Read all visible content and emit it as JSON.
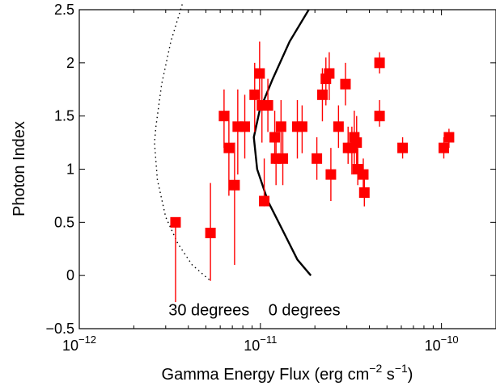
{
  "chart_data": {
    "type": "scatter",
    "xlabel": "Gamma Energy Flux (erg cm",
    "xlabel_sup1": "−2",
    "xlabel_mid": " s",
    "xlabel_sup2": "−1",
    "xlabel_end": ")",
    "ylabel": "Photon Index",
    "x_scale": "log",
    "xlim": [
      1e-12,
      2e-10
    ],
    "ylim": [
      -0.5,
      2.5
    ],
    "grid": false,
    "marker_color": "#ff0000",
    "x_ticks": [
      {
        "value": 1e-12,
        "base": "10",
        "exp": "−12"
      },
      {
        "value": 1e-11,
        "base": "10",
        "exp": "−11"
      },
      {
        "value": 1e-10,
        "base": "10",
        "exp": "−10"
      }
    ],
    "y_ticks": [
      {
        "value": -0.5,
        "label": "−0.5"
      },
      {
        "value": 0,
        "label": "0"
      },
      {
        "value": 0.5,
        "label": "0.5"
      },
      {
        "value": 1,
        "label": "1"
      },
      {
        "value": 1.5,
        "label": "1.5"
      },
      {
        "value": 2,
        "label": "2"
      },
      {
        "value": 2.5,
        "label": "2.5"
      }
    ],
    "annotations": [
      {
        "text": "30 degrees",
        "x": 5.2e-12,
        "y": -0.32
      },
      {
        "text": "0 degrees",
        "x": 1.75e-11,
        "y": -0.32
      }
    ],
    "curves": [
      {
        "name": "30 degrees",
        "style": "dotted",
        "points": [
          [
            3.7e-12,
            2.55
          ],
          [
            3.2e-12,
            2.2
          ],
          [
            2.85e-12,
            1.8
          ],
          [
            2.65e-12,
            1.4
          ],
          [
            2.6e-12,
            1.25
          ],
          [
            2.7e-12,
            0.9
          ],
          [
            3e-12,
            0.55
          ],
          [
            3.5e-12,
            0.3
          ],
          [
            4.2e-12,
            0.1
          ],
          [
            5.3e-12,
            -0.05
          ]
        ]
      },
      {
        "name": "0 degrees",
        "style": "solid",
        "points": [
          [
            1.85e-11,
            2.5
          ],
          [
            1.45e-11,
            2.2
          ],
          [
            1.17e-11,
            1.85
          ],
          [
            9.9e-12,
            1.55
          ],
          [
            9.2e-12,
            1.3
          ],
          [
            9.6e-12,
            1.0
          ],
          [
            1.1e-11,
            0.7
          ],
          [
            1.35e-11,
            0.4
          ],
          [
            1.6e-11,
            0.15
          ],
          [
            1.9e-11,
            0.0
          ]
        ]
      }
    ],
    "points": [
      {
        "x": 3.4e-12,
        "y": 0.5,
        "ylo": -0.25,
        "yhi": 0.5
      },
      {
        "x": 5.3e-12,
        "y": 0.4,
        "ylo": -0.05,
        "yhi": 0.87
      },
      {
        "x": 6.3e-12,
        "y": 1.5,
        "ylo": 1.2,
        "yhi": 1.75
      },
      {
        "x": 6.7e-12,
        "y": 1.2,
        "ylo": 0.75,
        "yhi": 1.55
      },
      {
        "x": 7.2e-12,
        "y": 0.85,
        "ylo": 0.1,
        "yhi": 1.25
      },
      {
        "x": 7.5e-12,
        "y": 1.4,
        "ylo": 0.95,
        "yhi": 1.75
      },
      {
        "x": 8.2e-12,
        "y": 1.4,
        "ylo": 1.1,
        "yhi": 1.7
      },
      {
        "x": 9.3e-12,
        "y": 1.7,
        "ylo": 1.35,
        "yhi": 2.0
      },
      {
        "x": 9.9e-12,
        "y": 1.9,
        "ylo": 1.65,
        "yhi": 2.2
      },
      {
        "x": 1.02e-11,
        "y": 1.6,
        "ylo": 1.25,
        "yhi": 1.85
      },
      {
        "x": 1.05e-11,
        "y": 0.7,
        "ylo": 0.65,
        "yhi": 1.1
      },
      {
        "x": 1.1e-11,
        "y": 1.6,
        "ylo": 1.35,
        "yhi": 1.85
      },
      {
        "x": 1.2e-11,
        "y": 1.3,
        "ylo": 1.05,
        "yhi": 1.55
      },
      {
        "x": 1.22e-11,
        "y": 1.1,
        "ylo": 0.85,
        "yhi": 1.35
      },
      {
        "x": 1.3e-11,
        "y": 1.4,
        "ylo": 1.15,
        "yhi": 1.65
      },
      {
        "x": 1.33e-11,
        "y": 1.1,
        "ylo": 0.85,
        "yhi": 1.35
      },
      {
        "x": 1.6e-11,
        "y": 1.4,
        "ylo": 1.1,
        "yhi": 1.65
      },
      {
        "x": 1.7e-11,
        "y": 1.4,
        "ylo": 1.15,
        "yhi": 1.6
      },
      {
        "x": 2.05e-11,
        "y": 1.1,
        "ylo": 0.9,
        "yhi": 1.3
      },
      {
        "x": 2.2e-11,
        "y": 1.7,
        "ylo": 1.45,
        "yhi": 1.95
      },
      {
        "x": 2.3e-11,
        "y": 1.85,
        "ylo": 1.6,
        "yhi": 2.05
      },
      {
        "x": 2.4e-11,
        "y": 1.9,
        "ylo": 1.65,
        "yhi": 2.1
      },
      {
        "x": 2.45e-11,
        "y": 0.95,
        "ylo": 0.7,
        "yhi": 1.2
      },
      {
        "x": 2.7e-11,
        "y": 1.4,
        "ylo": 1.2,
        "yhi": 1.6
      },
      {
        "x": 2.95e-11,
        "y": 1.8,
        "ylo": 1.6,
        "yhi": 2.0
      },
      {
        "x": 3.05e-11,
        "y": 1.2,
        "ylo": 1.05,
        "yhi": 1.4
      },
      {
        "x": 3.2e-11,
        "y": 1.2,
        "ylo": 0.95,
        "yhi": 1.4
      },
      {
        "x": 3.3e-11,
        "y": 1.3,
        "ylo": 1.05,
        "yhi": 1.55
      },
      {
        "x": 3.4e-11,
        "y": 1.25,
        "ylo": 1.0,
        "yhi": 1.5
      },
      {
        "x": 3.45e-11,
        "y": 1.0,
        "ylo": 0.85,
        "yhi": 1.2
      },
      {
        "x": 3.7e-11,
        "y": 0.95,
        "ylo": 0.8,
        "yhi": 1.1
      },
      {
        "x": 3.75e-11,
        "y": 0.78,
        "ylo": 0.65,
        "yhi": 0.95
      },
      {
        "x": 4.55e-11,
        "y": 2.0,
        "ylo": 1.9,
        "yhi": 2.1
      },
      {
        "x": 4.55e-11,
        "y": 1.5,
        "ylo": 1.4,
        "yhi": 1.65
      },
      {
        "x": 6.1e-11,
        "y": 1.2,
        "ylo": 1.1,
        "yhi": 1.3
      },
      {
        "x": 1.03e-10,
        "y": 1.2,
        "ylo": 1.1,
        "yhi": 1.3
      },
      {
        "x": 1.1e-10,
        "y": 1.3,
        "ylo": 1.2,
        "yhi": 1.38
      }
    ]
  }
}
